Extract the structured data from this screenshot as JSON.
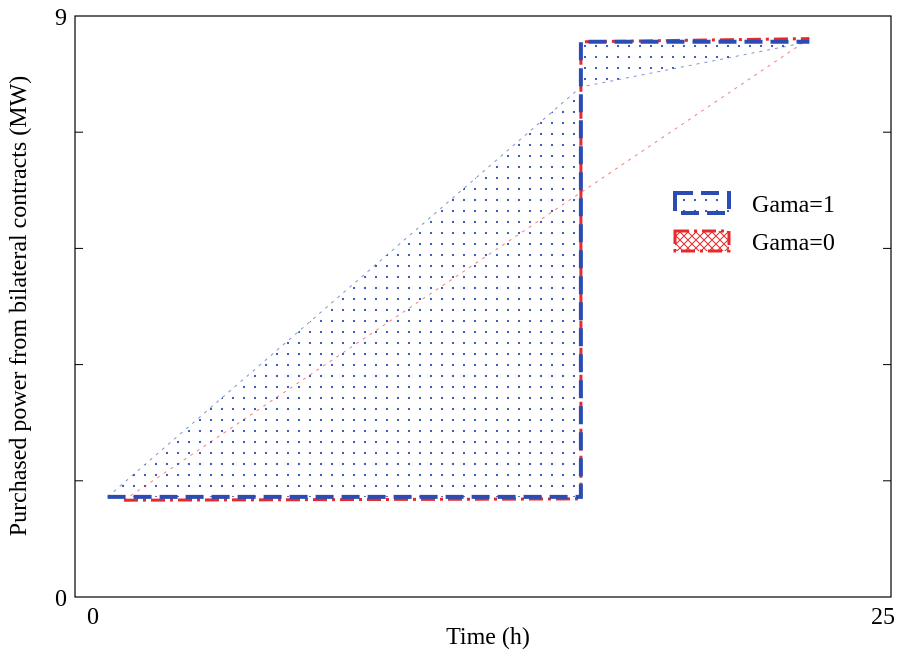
{
  "chart_data": {
    "type": "area",
    "title": "",
    "xlabel": "Time (h)",
    "ylabel": "Purchased power from bilateral contracts (MW)",
    "xlim": [
      0,
      25
    ],
    "ylim": [
      0,
      9
    ],
    "xticks": [
      0,
      25
    ],
    "yticks": [
      0,
      9
    ],
    "grid": false,
    "legend_position": "right",
    "series": [
      {
        "name": "Gama=1",
        "color": "#2b4cb3",
        "line_style": "dashed",
        "fill_pattern": "dots",
        "upper": [
          [
            1,
            1.55
          ],
          [
            15.5,
            1.55
          ],
          [
            15.5,
            8.6
          ],
          [
            22.5,
            8.6
          ]
        ],
        "lower": [
          [
            1,
            1.55
          ],
          [
            15.5,
            7.9
          ],
          [
            22.5,
            8.6
          ]
        ]
      },
      {
        "name": "Gama=0",
        "color": "#e8282b",
        "line_style": "dash-dot",
        "fill_pattern": "crosshatch",
        "upper": [
          [
            1.5,
            1.5
          ],
          [
            15.5,
            1.52
          ],
          [
            15.5,
            8.6
          ],
          [
            22.5,
            8.65
          ]
        ],
        "lower": [
          [
            1.5,
            1.5
          ],
          [
            22.5,
            8.65
          ]
        ]
      }
    ]
  }
}
